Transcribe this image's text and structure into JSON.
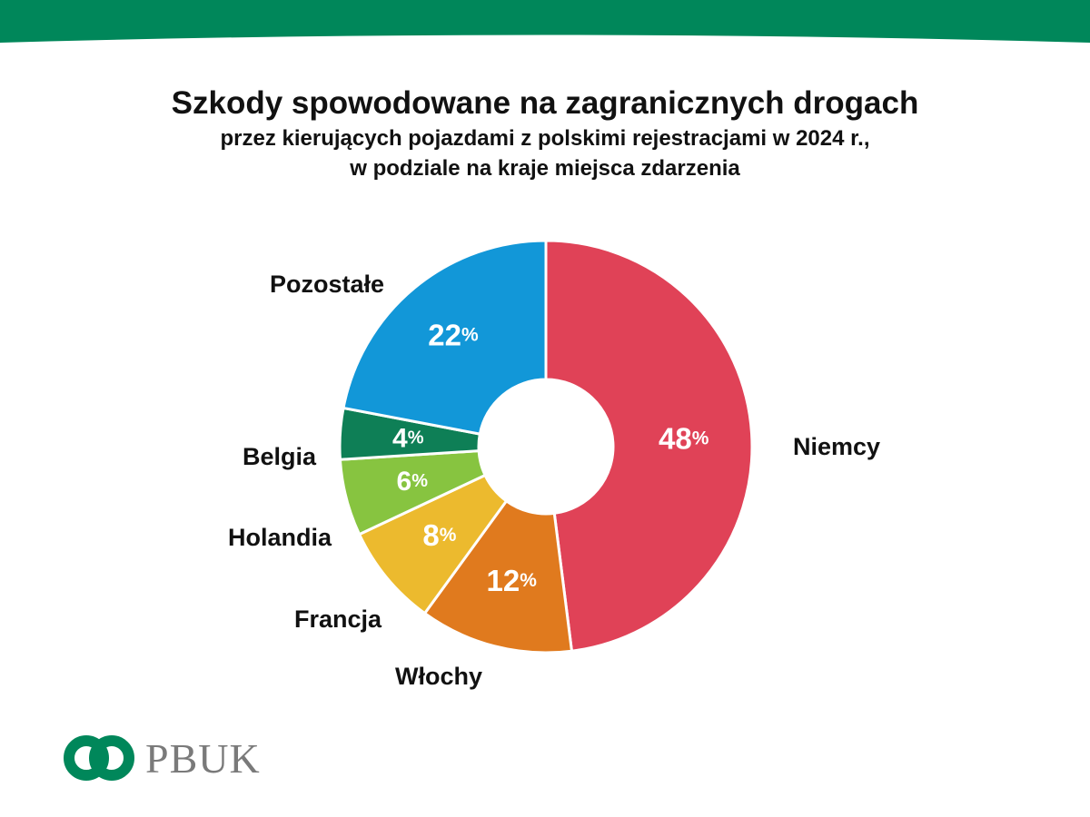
{
  "header": {
    "title": "Szkody spowodowane na zagranicznych drogach",
    "subtitle_line1": "przez kierujących pojazdami z polskimi rejestracjami w 2024 r.,",
    "subtitle_line2": "w podziale na kraje miejsca zdarzenia",
    "band_color": "#00875a"
  },
  "logo": {
    "text": "PBUK",
    "icon": "pbuk-logo-icon",
    "color": "#00875a"
  },
  "chart_data": {
    "type": "pie",
    "style": "donut",
    "title": "Szkody spowodowane na zagranicznych drogach",
    "unit": "%",
    "slices": [
      {
        "label": "Niemcy",
        "value": 48,
        "color": "#e04257"
      },
      {
        "label": "Włochy",
        "value": 12,
        "color": "#e07a1e"
      },
      {
        "label": "Francja",
        "value": 8,
        "color": "#ecba2e"
      },
      {
        "label": "Holandia",
        "value": 6,
        "color": "#87c440"
      },
      {
        "label": "Belgia",
        "value": 4,
        "color": "#0e7f56"
      },
      {
        "label": "Pozostałe",
        "value": 22,
        "color": "#1297d8"
      }
    ]
  }
}
